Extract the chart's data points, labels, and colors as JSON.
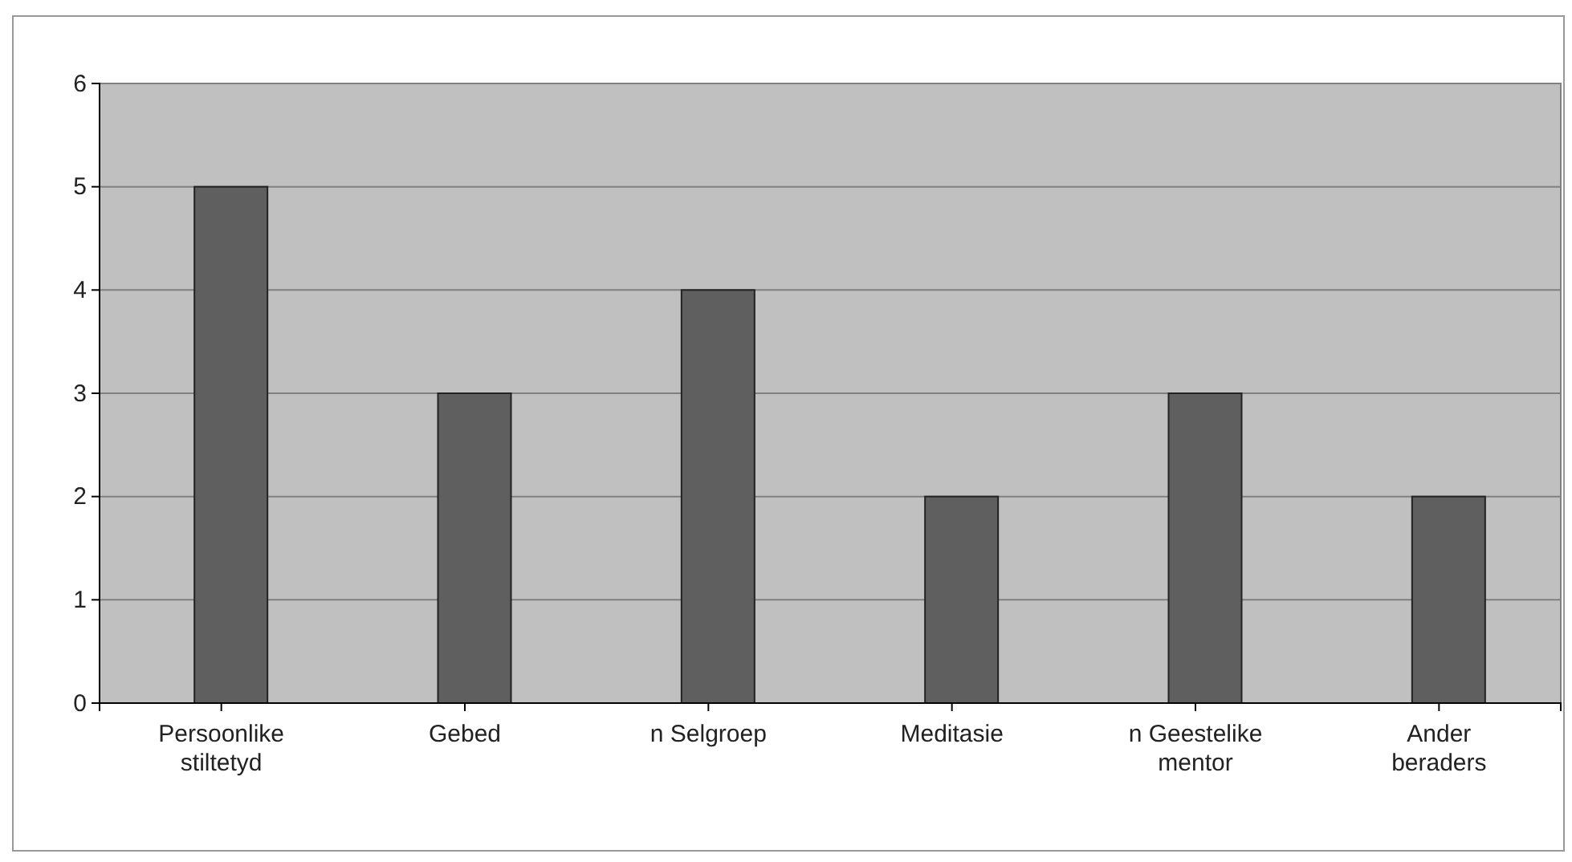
{
  "chart_data": {
    "type": "bar",
    "categories": [
      "Persoonlike stiltetyd",
      "Gebed",
      "n Selgroep",
      "Meditasie",
      "n Geestelike mentor",
      "Ander beraders"
    ],
    "values": [
      5,
      3,
      4,
      2,
      3,
      2
    ],
    "color": "#5f5f5f",
    "ylim": [
      0,
      6
    ],
    "yticks": [
      0,
      1,
      2,
      3,
      4,
      5,
      6
    ],
    "grid": "y"
  }
}
